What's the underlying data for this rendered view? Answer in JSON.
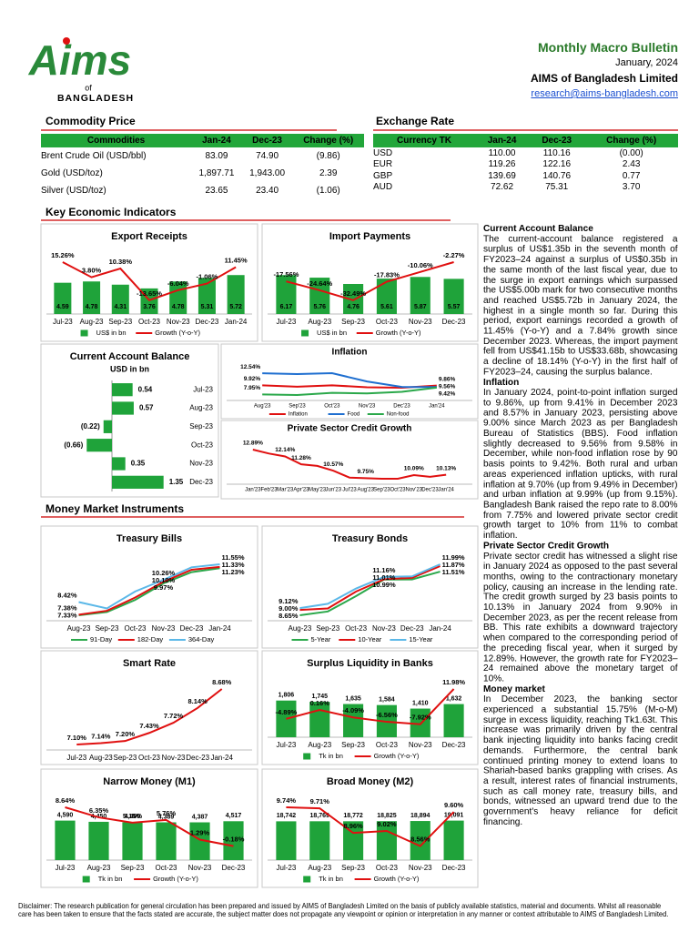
{
  "header": {
    "title": "Monthly Macro Bulletin",
    "date": "January, 2024",
    "organization": "AIMS of Bangladesh Limited",
    "email": "research@aims-bangladesh.com"
  },
  "logo": {
    "name": "Aims",
    "of": "of",
    "country": "BANGLADESH"
  },
  "commodity": {
    "title": "Commodity Price",
    "header": [
      "Commodities",
      "Jan-24",
      "Dec-23",
      "Change (%)"
    ],
    "rows": [
      [
        "Brent Crude Oil (USD/bbl)",
        "83.09",
        "74.90",
        "(9.86)"
      ],
      [
        "Gold (USD/toz)",
        "1,897.71",
        "1,943.00",
        "2.39"
      ],
      [
        "Silver (USD/toz)",
        "23.65",
        "23.40",
        "(1.06)"
      ]
    ]
  },
  "exchange": {
    "title": "Exchange Rate",
    "header": [
      "Currency TK",
      "Jan-24",
      "Dec-23",
      "Change (%)"
    ],
    "rows": [
      [
        "USD",
        "110.00",
        "110.16",
        "(0.00)"
      ],
      [
        "EUR",
        "119.26",
        "122.16",
        "2.43"
      ],
      [
        "GBP",
        "139.69",
        "140.76",
        "0.77"
      ],
      [
        "AUD",
        "72.62",
        "75.31",
        "3.70"
      ]
    ]
  },
  "sections": {
    "key": "Key Economic Indicators",
    "money": "Money Market Instruments"
  },
  "charts": [
    {
      "type": "bar-line",
      "title": "Export Receipts",
      "categories": [
        "Jul-23",
        "Aug-23",
        "Sep-23",
        "Oct-23",
        "Nov-23",
        "Dec-23",
        "Jan-24"
      ],
      "series": [
        {
          "name": "US$ in bn",
          "kind": "bar",
          "color": "#1fa33a",
          "values": [
            4.59,
            4.78,
            4.31,
            3.76,
            4.78,
            5.31,
            5.72
          ]
        },
        {
          "name": "Growth (Y-o-Y)",
          "kind": "line",
          "color": "#e01010",
          "values": [
            15.26,
            3.8,
            10.38,
            -13.65,
            -6.04,
            -1.06,
            11.45
          ],
          "value_labels": [
            "15.26%",
            "3.80%",
            "10.38%",
            "-13.65%",
            "-6.04%",
            "-1.06%",
            "11.45%"
          ]
        }
      ]
    },
    {
      "type": "bar-line",
      "title": "Import Payments",
      "categories": [
        "Jul-23",
        "Aug-23",
        "Sep-23",
        "Oct-23",
        "Nov-23",
        "Dec-23"
      ],
      "series": [
        {
          "name": "US$ in bn",
          "kind": "bar",
          "color": "#1fa33a",
          "values": [
            6.17,
            5.76,
            4.76,
            5.61,
            5.87,
            5.57
          ]
        },
        {
          "name": "Growth (Y-o-Y)",
          "kind": "line",
          "color": "#e01010",
          "values": [
            -17.56,
            -24.64,
            -32.49,
            -17.83,
            -10.06,
            -2.27
          ],
          "value_labels": [
            "-17.56%",
            "-24.64%",
            "-32.49%",
            "-17.83%",
            "-10.06%",
            "-2.27%"
          ]
        }
      ]
    },
    {
      "type": "hbar",
      "title": "Current Account Balance",
      "subtitle": "USD in bn",
      "categories": [
        "Jul-23",
        "Aug-23",
        "Sep-23",
        "Oct-23",
        "Nov-23",
        "Dec-23"
      ],
      "color": "#1fa33a",
      "values": [
        0.54,
        0.57,
        -0.22,
        -0.66,
        0.35,
        1.35
      ],
      "value_labels": [
        "0.54",
        "0.57",
        "(0.22)",
        "(0.66)",
        "0.35",
        "1.35"
      ]
    },
    {
      "type": "line",
      "title": "Inflation",
      "categories": [
        "Aug'23",
        "Sep'23",
        "Oct'23",
        "Nov'23",
        "Dec'23",
        "Jan'24"
      ],
      "series": [
        {
          "name": "Inflation",
          "kind": "line",
          "color": "#e01010",
          "values": [
            9.92,
            9.63,
            9.93,
            9.49,
            9.41,
            9.86
          ],
          "value_labels": [
            "9.92%",
            null,
            null,
            null,
            null,
            "9.86%"
          ]
        },
        {
          "name": "Food",
          "kind": "line",
          "color": "#1f6fd0",
          "values": [
            12.54,
            12.37,
            12.56,
            10.76,
            9.58,
            9.56
          ],
          "value_labels": [
            "12.54%",
            null,
            null,
            null,
            null,
            "9.56%"
          ]
        },
        {
          "name": "Non-food",
          "kind": "line",
          "color": "#2aa84a",
          "values": [
            7.95,
            7.82,
            8.3,
            8.16,
            8.52,
            9.42
          ],
          "value_labels": [
            "7.95%",
            null,
            null,
            null,
            null,
            "9.42%"
          ]
        }
      ]
    },
    {
      "type": "line",
      "title": "Private Sector Credit Growth",
      "categories": [
        "Jan'23",
        "Feb'23",
        "Mar'23",
        "Apr'23",
        "May'23",
        "Jun'23",
        "Jul'23",
        "Aug'23",
        "Sep'23",
        "Oct'23",
        "Nov'23",
        "Dec'23",
        "Jan'24"
      ],
      "series": [
        {
          "name": "Private Sector Credit Growth",
          "kind": "line",
          "color": "#e01010",
          "values": [
            12.89,
            12.46,
            12.14,
            11.28,
            11.1,
            10.57,
            9.82,
            9.75,
            9.69,
            9.69,
            10.09,
            9.9,
            10.13
          ],
          "value_labels": [
            "12.89%",
            null,
            "12.14%",
            "11.28%",
            null,
            "10.57%",
            null,
            "9.75%",
            null,
            null,
            "10.09%",
            null,
            "10.13%"
          ]
        }
      ]
    },
    {
      "type": "line",
      "title": "Treasury Bills",
      "categories": [
        "Aug-23",
        "Sep-23",
        "Oct-23",
        "Nov-23",
        "Dec-23",
        "Jan-24"
      ],
      "series": [
        {
          "name": "91-Day",
          "kind": "line",
          "color": "#2aa84a",
          "values": [
            7.33,
            7.6,
            8.6,
            9.97,
            10.9,
            11.23
          ],
          "value_labels": [
            "7.33%",
            null,
            null,
            "9.97%",
            null,
            "11.23%"
          ]
        },
        {
          "name": "182-Day",
          "kind": "line",
          "color": "#e01010",
          "values": [
            7.38,
            7.7,
            8.8,
            10.1,
            11.1,
            11.33
          ],
          "value_labels": [
            "7.38%",
            null,
            null,
            "10.10%",
            null,
            "11.33%"
          ]
        },
        {
          "name": "364-Day",
          "kind": "line",
          "color": "#5bb8e8",
          "values": [
            8.42,
            7.9,
            9.3,
            10.26,
            11.3,
            11.55
          ],
          "value_labels": [
            "8.42%",
            null,
            null,
            "10.26%",
            null,
            "11.55%"
          ]
        }
      ]
    },
    {
      "type": "line",
      "title": "Treasury Bonds",
      "categories": [
        "Aug-23",
        "Sep-23",
        "Oct-23",
        "Nov-23",
        "Dec-23",
        "Jan-24"
      ],
      "series": [
        {
          "name": "5-Year",
          "kind": "line",
          "color": "#2aa84a",
          "values": [
            8.65,
            8.9,
            9.9,
            10.99,
            11.0,
            11.51
          ],
          "value_labels": [
            "8.65%",
            null,
            null,
            "10.99%",
            null,
            "11.51%"
          ]
        },
        {
          "name": "10-Year",
          "kind": "line",
          "color": "#e01010",
          "values": [
            9.0,
            9.1,
            10.2,
            11.01,
            11.1,
            11.87
          ],
          "value_labels": [
            "9.00%",
            null,
            null,
            "11.01%",
            null,
            "11.87%"
          ]
        },
        {
          "name": "15-Year",
          "kind": "line",
          "color": "#5bb8e8",
          "values": [
            9.12,
            9.4,
            10.4,
            11.16,
            11.2,
            11.99
          ],
          "value_labels": [
            "9.12%",
            null,
            null,
            "11.16%",
            null,
            "11.99%"
          ]
        }
      ]
    },
    {
      "type": "line",
      "title": "Smart Rate",
      "categories": [
        "Jul-23",
        "Aug-23",
        "Sep-23",
        "Oct-23",
        "Nov-23",
        "Dec-23",
        "Jan-24"
      ],
      "series": [
        {
          "name": "Smart Rate",
          "kind": "line",
          "color": "#e01010",
          "values": [
            7.1,
            7.14,
            7.2,
            7.43,
            7.72,
            8.14,
            8.68
          ],
          "value_labels": [
            "7.10%",
            "7.14%",
            "7.20%",
            "7.43%",
            "7.72%",
            "8.14%",
            "8.68%"
          ]
        }
      ]
    },
    {
      "type": "bar-line",
      "title": "Surplus Liquidity in Banks",
      "categories": [
        "Jul-23",
        "Aug-23",
        "Sep-23",
        "Oct-23",
        "Nov-23",
        "Dec-23"
      ],
      "series": [
        {
          "name": "Tk in bn",
          "kind": "bar",
          "color": "#1fa33a",
          "values": [
            1806,
            1745,
            1635,
            1584,
            1410,
            1632
          ],
          "value_labels": [
            "1,806",
            "1,745",
            "1,635",
            "1,584",
            "1,410",
            "1,632"
          ]
        },
        {
          "name": "Growth (Y-o-Y)",
          "kind": "line",
          "color": "#e01010",
          "values": [
            -4.89,
            0.16,
            -4.09,
            -6.56,
            -7.92,
            11.98
          ],
          "value_labels": [
            "-4.89%",
            "0.16%",
            "-4.09%",
            "-6.56%",
            "-7.92%",
            "11.98%"
          ]
        }
      ]
    },
    {
      "type": "bar-line",
      "title": "Narrow Money (M1)",
      "categories": [
        "Jul-23",
        "Aug-23",
        "Sep-23",
        "Oct-23",
        "Nov-23",
        "Dec-23"
      ],
      "series": [
        {
          "name": "Tk in bn",
          "kind": "bar",
          "color": "#1fa33a",
          "values": [
            4590,
            4450,
            4400,
            4389,
            4387,
            4517
          ],
          "value_labels": [
            "4,590",
            "4,450",
            "4,400",
            "4,389",
            "4,387",
            "4,517"
          ]
        },
        {
          "name": "Growth (Y-o-Y)",
          "kind": "line",
          "color": "#e01010",
          "values": [
            8.64,
            6.35,
            5.15,
            5.76,
            1.29,
            -0.18
          ],
          "value_labels": [
            "8.64%",
            "6.35%",
            "5.15%",
            "5.76%",
            "1.29%",
            "-0.18%"
          ]
        }
      ]
    },
    {
      "type": "bar-line",
      "title": "Broad Money (M2)",
      "categories": [
        "Jul-23",
        "Aug-23",
        "Sep-23",
        "Oct-23",
        "Nov-23",
        "Dec-23"
      ],
      "series": [
        {
          "name": "Tk in bn",
          "kind": "bar",
          "color": "#1fa33a",
          "values": [
            18742,
            18769,
            18772,
            18825,
            18894,
            19091
          ],
          "value_labels": [
            "18,742",
            "18,769",
            "18,772",
            "18,825",
            "18,894",
            "19,091"
          ]
        },
        {
          "name": "Growth (Y-o-Y)",
          "kind": "line",
          "color": "#e01010",
          "values": [
            9.74,
            9.71,
            8.96,
            9.02,
            8.56,
            9.6
          ],
          "value_labels": [
            "9.74%",
            "9.71%",
            "8.96%",
            "9.02%",
            "8.56%",
            "9.60%"
          ]
        }
      ]
    }
  ],
  "commentary": [
    {
      "heading": "Current Account Balance",
      "text": "The current-account balance registered a surplus of US$1.35b in the seventh month of FY2023–24 against a surplus of US$0.35b in the same month of the last fiscal year, due to the surge in export earnings which surpassed the US$5.00b mark for two consecutive months and reached US$5.72b in January 2024, the highest in a single month so far. During this period, export earnings recorded a growth of 11.45% (Y-o-Y) and a 7.84% growth since December 2023. Whereas, the import payment fell from US$41.15b to US$33.68b, showcasing a decline of 18.14% (Y-o-Y) in the first half of FY2023–24, causing the surplus balance."
    },
    {
      "heading": "Inflation",
      "text": "In January 2024, point-to-point inflation surged to 9.86%, up from 9.41% in December 2023 and 8.57% in January 2023, persisting above 9.00% since March 2023 as per Bangladesh Bureau of Statistics (BBS). Food inflation slightly decreased to 9.56% from 9.58% in December, while non-food inflation rose by 90 basis points to 9.42%. Both rural and urban areas experienced inflation upticks, with rural inflation at 9.70% (up from 9.49% in December) and urban inflation at 9.99% (up from 9.15%). Bangladesh Bank raised the repo rate to 8.00% from 7.75% and lowered private sector credit growth target to 10% from 11% to combat inflation."
    },
    {
      "heading": "Private Sector Credit Growth",
      "text": "Private sector credit has witnessed a slight rise in January 2024 as opposed to the past several months, owing to the contractionary monetary policy, causing an increase in the lending rate. The credit growth surged by 23 basis points to 10.13% in January 2024 from 9.90% in December 2023, as per the recent release from BB. This rate exhibits a downward trajectory when compared to the corresponding period of the preceding fiscal year, when it surged by 12.89%. However, the growth rate for FY2023–24 remained above the monetary target of 10%."
    },
    {
      "heading": "Money market",
      "text": "In December 2023, the banking sector experienced a substantial 15.75% (M-o-M) surge in excess liquidity, reaching Tk1.63t. This increase was primarily driven by the central bank injecting liquidity into banks facing credit demands. Furthermore, the central bank continued printing money to extend loans to Shariah-based banks grappling with crises. As a result, interest rates of financial instruments, such as call money rate, treasury bills, and bonds, witnessed an upward trend due to the government's heavy reliance for deficit financing."
    }
  ],
  "disclaimer": "Disclaimer: The research publication for general circulation has been prepared and issued by AIMS of Bangladesh Limited on the basis of publicly available statistics, material and documents. Whilst all reasonable care has been taken to ensure that the facts stated are accurate, the subject matter does not propagate any viewpoint or opinion or interpretation in any manner or context attributable to AIMS of Bangladesh Limited."
}
